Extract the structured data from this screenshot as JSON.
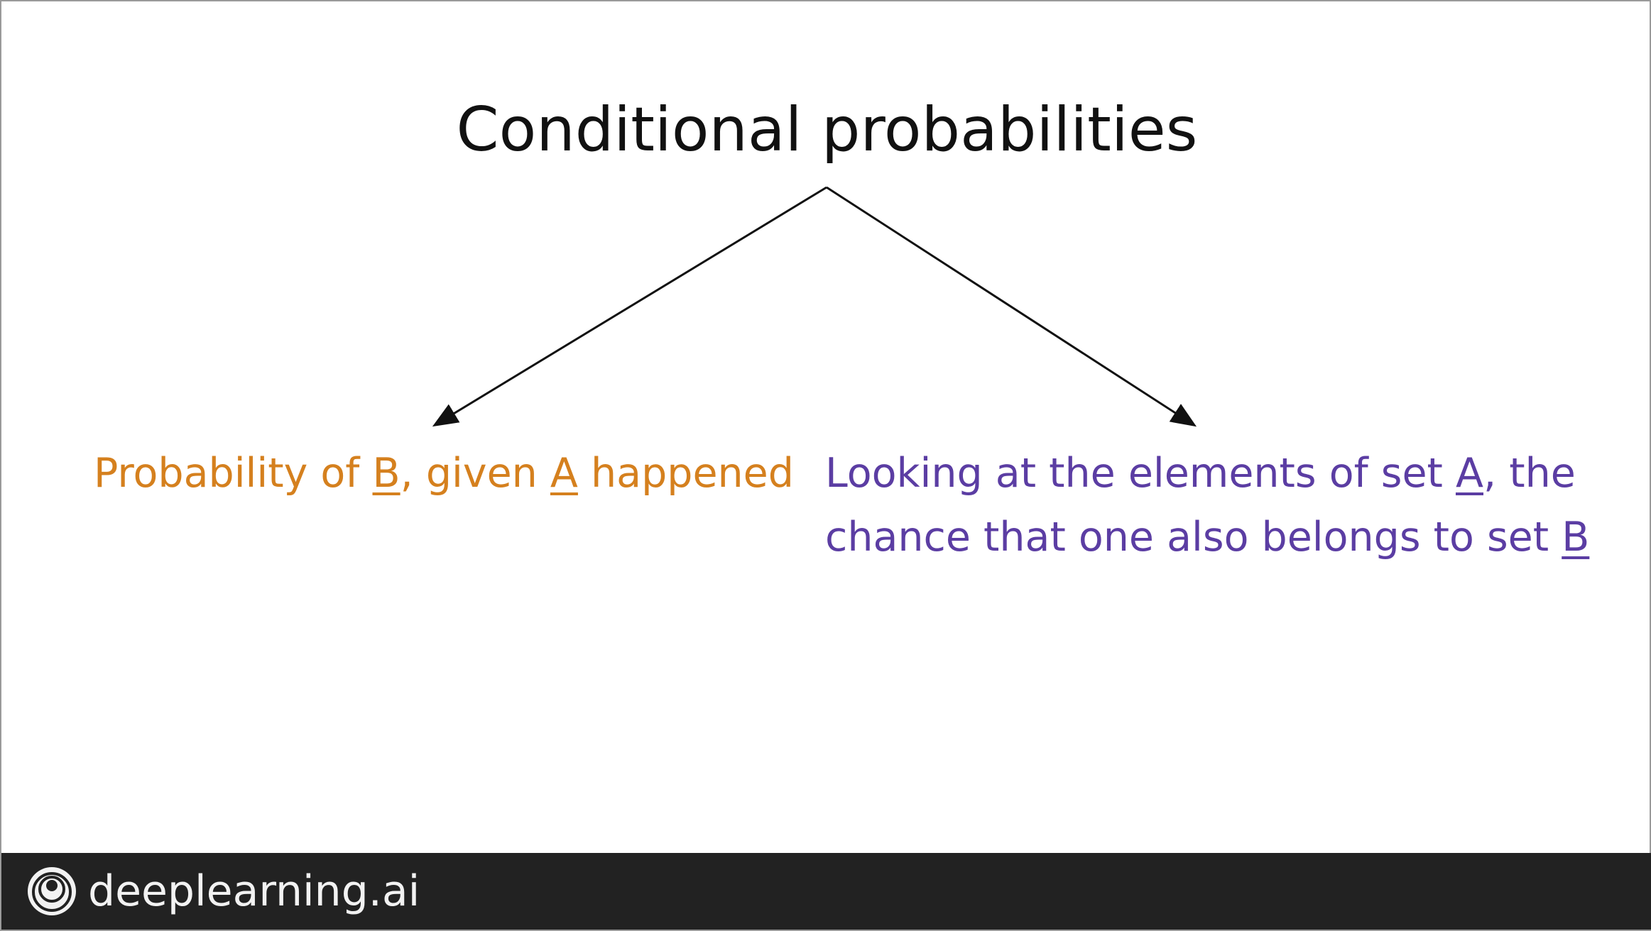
{
  "title": "Conditional probabilities",
  "left_branch": {
    "before": "Probability of ",
    "set_b": "B",
    "middle": ", given ",
    "set_a": "A",
    "after": " happened",
    "color": "#D5801E"
  },
  "right_branch": {
    "line1_before": "Looking at the elements of set ",
    "set_a": "A",
    "line1_after": ", the",
    "line2_before": "chance that one also belongs to set ",
    "set_b": "B",
    "color": "#5B3DA3"
  },
  "footer": {
    "brand": "deeplearning.ai",
    "logo_icon": "deeplearning-logo-icon"
  }
}
